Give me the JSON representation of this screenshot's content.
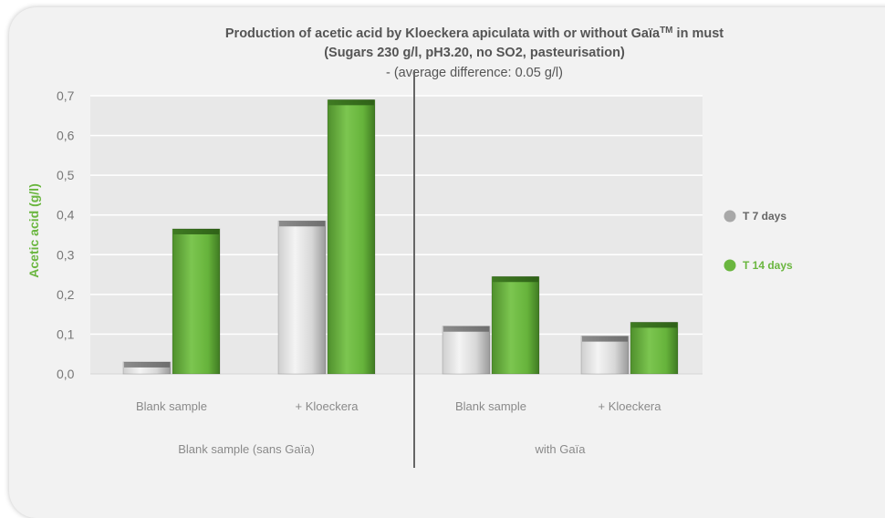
{
  "chart_data": {
    "type": "bar",
    "title": "Production of acetic acid by Kloeckera apiculata with or without Gaïa",
    "title_sup": "TM",
    "title_suffix": " in must",
    "title_line2": "(Sugars 230 g/l, pH3.20, no SO2, pasteurisation)",
    "subtitle": "- (average difference: 0.05 g/l)",
    "ylabel": "Acetic acid (g/l)",
    "xlabel": "",
    "ylim": [
      0,
      0.7
    ],
    "yticks": [
      "0,0",
      "0,1",
      "0,2",
      "0,3",
      "0,4",
      "0,5",
      "0,6",
      "0,7"
    ],
    "grid": true,
    "legend_position": "right",
    "categories": [
      "Blank sample",
      "+ Kloeckera",
      "Blank sample",
      "+ Kloeckera"
    ],
    "groups": [
      "Blank sample (sans Gaïa)",
      "with Gaïa"
    ],
    "series": [
      {
        "name": "T 7 days",
        "color": "#a8a8a8",
        "values": [
          0.03,
          0.385,
          0.12,
          0.095
        ]
      },
      {
        "name": "T 14 days",
        "color": "#6ab63f",
        "values": [
          0.365,
          0.69,
          0.245,
          0.13
        ]
      }
    ]
  }
}
